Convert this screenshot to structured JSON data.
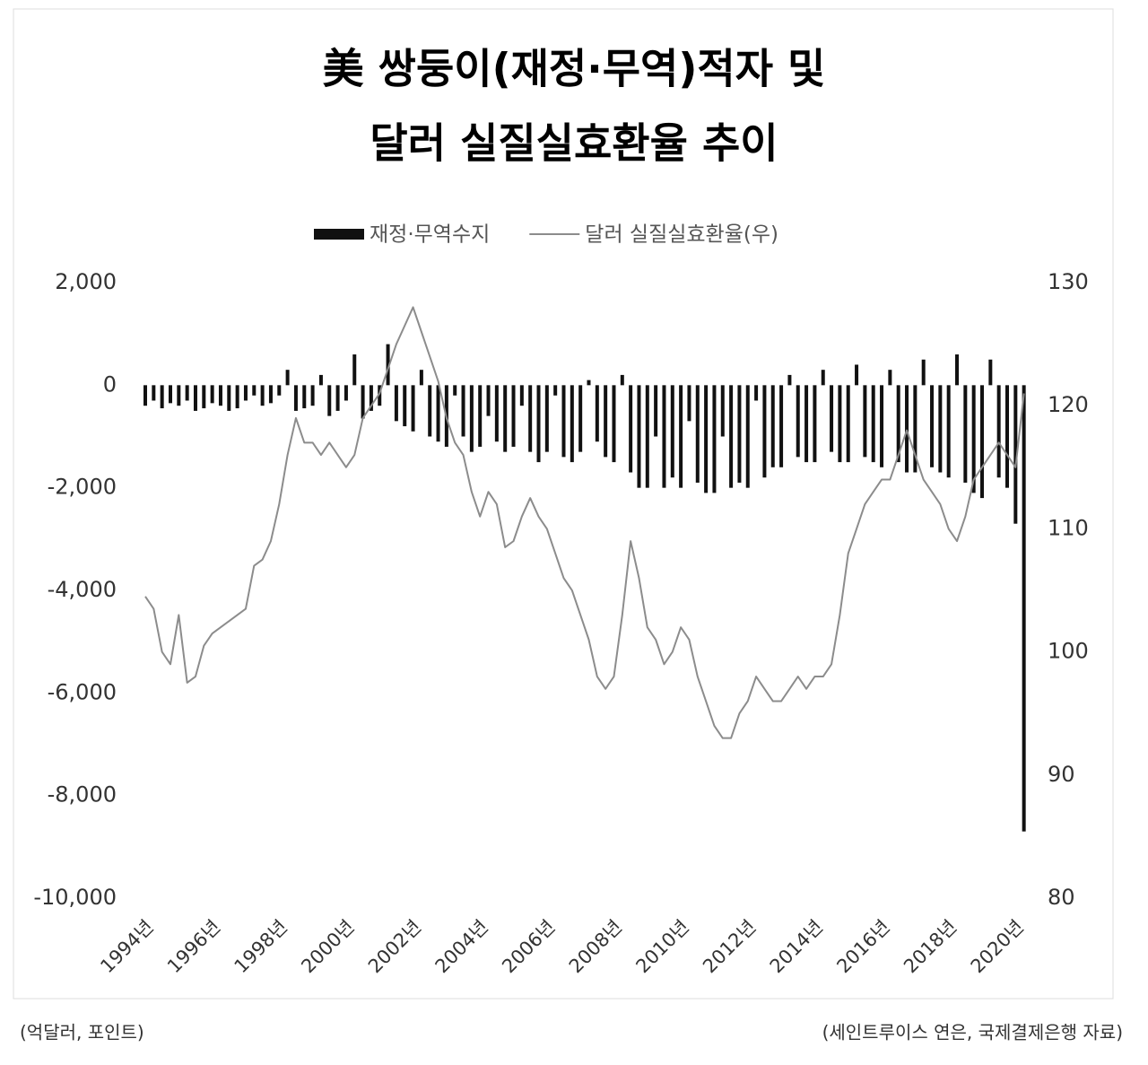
{
  "chart_data": {
    "type": "combo",
    "title": "美 쌍둥이(재정·무역)적자 및",
    "subtitle": "달러 실질실효환율 추이",
    "y_unit_note": "(억달러, 포인트)",
    "source": "(세인트루이스 연은, 국제결제은행 자료)",
    "categories": [
      "1994년",
      null,
      null,
      null,
      null,
      null,
      null,
      null,
      "1996년",
      null,
      null,
      null,
      null,
      null,
      null,
      null,
      "1998년",
      null,
      null,
      null,
      null,
      null,
      null,
      null,
      "2000년",
      null,
      null,
      null,
      null,
      null,
      null,
      null,
      "2002년",
      null,
      null,
      null,
      null,
      null,
      null,
      null,
      "2004년",
      null,
      null,
      null,
      null,
      null,
      null,
      null,
      "2006년",
      null,
      null,
      null,
      null,
      null,
      null,
      null,
      "2008년",
      null,
      null,
      null,
      null,
      null,
      null,
      null,
      "2010년",
      null,
      null,
      null,
      null,
      null,
      null,
      null,
      "2012년",
      null,
      null,
      null,
      null,
      null,
      null,
      null,
      "2014년",
      null,
      null,
      null,
      null,
      null,
      null,
      null,
      "2016년",
      null,
      null,
      null,
      null,
      null,
      null,
      null,
      "2018년",
      null,
      null,
      null,
      null,
      null,
      null,
      null,
      "2020년",
      null
    ],
    "series": [
      {
        "name": "재정·무역수지",
        "type": "bar",
        "color": "#111111",
        "axis": "y",
        "values": [
          -400,
          -300,
          -450,
          -350,
          -400,
          -300,
          -500,
          -450,
          -350,
          -400,
          -500,
          -450,
          -300,
          -200,
          -400,
          -350,
          -200,
          300,
          -500,
          -450,
          -400,
          200,
          -600,
          -500,
          -300,
          600,
          -650,
          -500,
          -400,
          800,
          -700,
          -800,
          -900,
          300,
          -1000,
          -1100,
          -1200,
          -200,
          -1000,
          -1300,
          -1200,
          -600,
          -1100,
          -1300,
          -1200,
          -400,
          -1300,
          -1500,
          -1300,
          -200,
          -1400,
          -1500,
          -1300,
          100,
          -1100,
          -1400,
          -1500,
          200,
          -1700,
          -2000,
          -2000,
          -1000,
          -2000,
          -1800,
          -2000,
          -700,
          -1900,
          -2100,
          -2100,
          -1000,
          -2000,
          -1900,
          -2000,
          -300,
          -1800,
          -1600,
          -1600,
          200,
          -1400,
          -1500,
          -1500,
          300,
          -1300,
          -1500,
          -1500,
          400,
          -1400,
          -1500,
          -1600,
          300,
          -1500,
          -1700,
          -1700,
          500,
          -1600,
          -1700,
          -1800,
          600,
          -1900,
          -2100,
          -2200,
          500,
          -1800,
          -2000,
          -2700,
          -8700
        ]
      },
      {
        "name": "달러 실질실효환율(우)",
        "type": "line",
        "color": "#8c8c8c",
        "axis": "y2",
        "values": [
          104.5,
          103.5,
          100,
          99,
          103,
          97.5,
          98,
          100.5,
          101.5,
          102,
          102.5,
          103,
          103.5,
          107,
          107.5,
          109,
          112,
          116,
          119,
          117,
          117,
          116,
          117,
          116,
          115,
          116,
          119,
          120,
          121,
          123,
          125,
          126.5,
          128,
          126,
          124,
          122,
          119,
          117,
          116,
          113,
          111,
          113,
          112,
          108.5,
          109,
          111,
          112.5,
          111,
          110,
          108,
          106,
          105,
          103,
          101,
          98,
          97,
          98,
          103,
          109,
          106,
          102,
          101,
          99,
          100,
          102,
          101,
          98,
          96,
          94,
          93,
          93,
          95,
          96,
          98,
          97,
          96,
          96,
          97,
          98,
          97,
          98,
          98,
          99,
          103,
          108,
          110,
          112,
          113,
          114,
          114,
          116,
          118,
          116,
          114,
          113,
          112,
          110,
          109,
          111,
          114,
          115,
          116,
          117,
          116,
          115,
          121
        ]
      }
    ],
    "ylim": [
      -10000,
      2000
    ],
    "yticks": [
      {
        "value": 2000,
        "label": "2,000"
      },
      0,
      {
        "value": -2000,
        "label": "-2,000"
      },
      {
        "value": -4000,
        "label": "-4,000"
      },
      {
        "value": -6000,
        "label": "-6,000"
      },
      {
        "value": -8000,
        "label": "-8,000"
      },
      {
        "value": -10000,
        "label": "-10,000"
      }
    ],
    "y2lim": [
      80,
      130
    ],
    "y2ticks": [
      130,
      120,
      110,
      100,
      90,
      80
    ],
    "legend": "top",
    "grid": false
  }
}
